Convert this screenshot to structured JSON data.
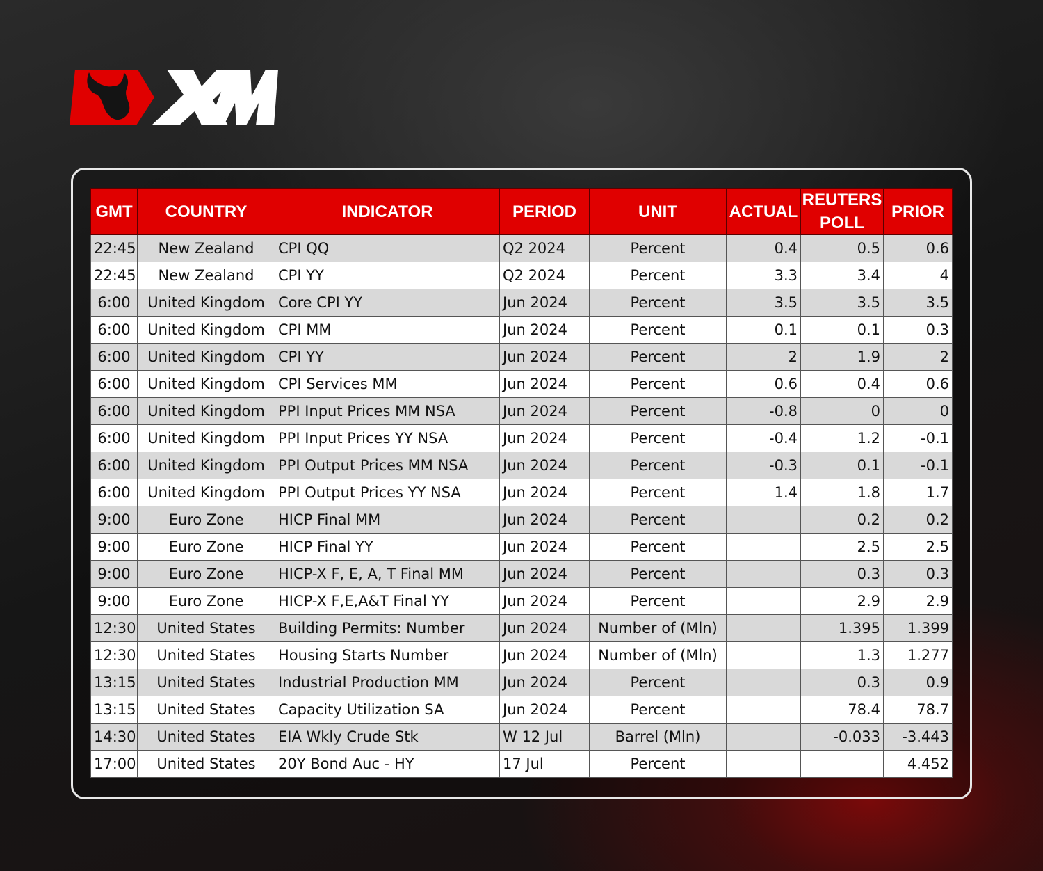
{
  "brand": {
    "logo_text": "XM",
    "accent": "#e00000"
  },
  "table": {
    "headers": [
      "GMT",
      "COUNTRY",
      "INDICATOR",
      "PERIOD",
      "UNIT",
      "ACTUAL",
      "REUTERS POLL",
      "PRIOR"
    ],
    "rows": [
      [
        "22:45",
        "New Zealand",
        "CPI QQ",
        "Q2 2024",
        "Percent",
        "0.4",
        "0.5",
        "0.6"
      ],
      [
        "22:45",
        "New Zealand",
        "CPI YY",
        "Q2 2024",
        "Percent",
        "3.3",
        "3.4",
        "4"
      ],
      [
        "6:00",
        "United Kingdom",
        "Core CPI YY",
        "Jun 2024",
        "Percent",
        "3.5",
        "3.5",
        "3.5"
      ],
      [
        "6:00",
        "United Kingdom",
        "CPI MM",
        "Jun 2024",
        "Percent",
        "0.1",
        "0.1",
        "0.3"
      ],
      [
        "6:00",
        "United Kingdom",
        "CPI YY",
        "Jun 2024",
        "Percent",
        "2",
        "1.9",
        "2"
      ],
      [
        "6:00",
        "United Kingdom",
        "CPI Services MM",
        "Jun 2024",
        "Percent",
        "0.6",
        "0.4",
        "0.6"
      ],
      [
        "6:00",
        "United Kingdom",
        "PPI Input Prices MM NSA",
        "Jun 2024",
        "Percent",
        "-0.8",
        "0",
        "0"
      ],
      [
        "6:00",
        "United Kingdom",
        "PPI Input Prices YY NSA",
        "Jun 2024",
        "Percent",
        "-0.4",
        "1.2",
        "-0.1"
      ],
      [
        "6:00",
        "United Kingdom",
        "PPI Output Prices MM NSA",
        "Jun 2024",
        "Percent",
        "-0.3",
        "0.1",
        "-0.1"
      ],
      [
        "6:00",
        "United Kingdom",
        "PPI Output Prices YY NSA",
        "Jun 2024",
        "Percent",
        "1.4",
        "1.8",
        "1.7"
      ],
      [
        "9:00",
        "Euro Zone",
        "HICP Final MM",
        "Jun 2024",
        "Percent",
        "",
        "0.2",
        "0.2"
      ],
      [
        "9:00",
        "Euro Zone",
        "HICP Final YY",
        "Jun 2024",
        "Percent",
        "",
        "2.5",
        "2.5"
      ],
      [
        "9:00",
        "Euro Zone",
        "HICP-X F, E, A, T Final MM",
        "Jun 2024",
        "Percent",
        "",
        "0.3",
        "0.3"
      ],
      [
        "9:00",
        "Euro Zone",
        "HICP-X F,E,A&T Final YY",
        "Jun 2024",
        "Percent",
        "",
        "2.9",
        "2.9"
      ],
      [
        "12:30",
        "United States",
        "Building Permits: Number",
        "Jun 2024",
        "Number of (Mln)",
        "",
        "1.395",
        "1.399"
      ],
      [
        "12:30",
        "United States",
        "Housing Starts Number",
        "Jun 2024",
        "Number of (Mln)",
        "",
        "1.3",
        "1.277"
      ],
      [
        "13:15",
        "United States",
        "Industrial Production MM",
        "Jun 2024",
        "Percent",
        "",
        "0.3",
        "0.9"
      ],
      [
        "13:15",
        "United States",
        "Capacity Utilization SA",
        "Jun 2024",
        "Percent",
        "",
        "78.4",
        "78.7"
      ],
      [
        "14:30",
        "United States",
        "EIA Wkly Crude Stk",
        "W 12 Jul",
        "Barrel (Mln)",
        "",
        "-0.033",
        "-3.443"
      ],
      [
        "17:00",
        "United States",
        "20Y Bond Auc - HY",
        "17 Jul",
        "Percent",
        "",
        "",
        "4.452"
      ]
    ]
  }
}
